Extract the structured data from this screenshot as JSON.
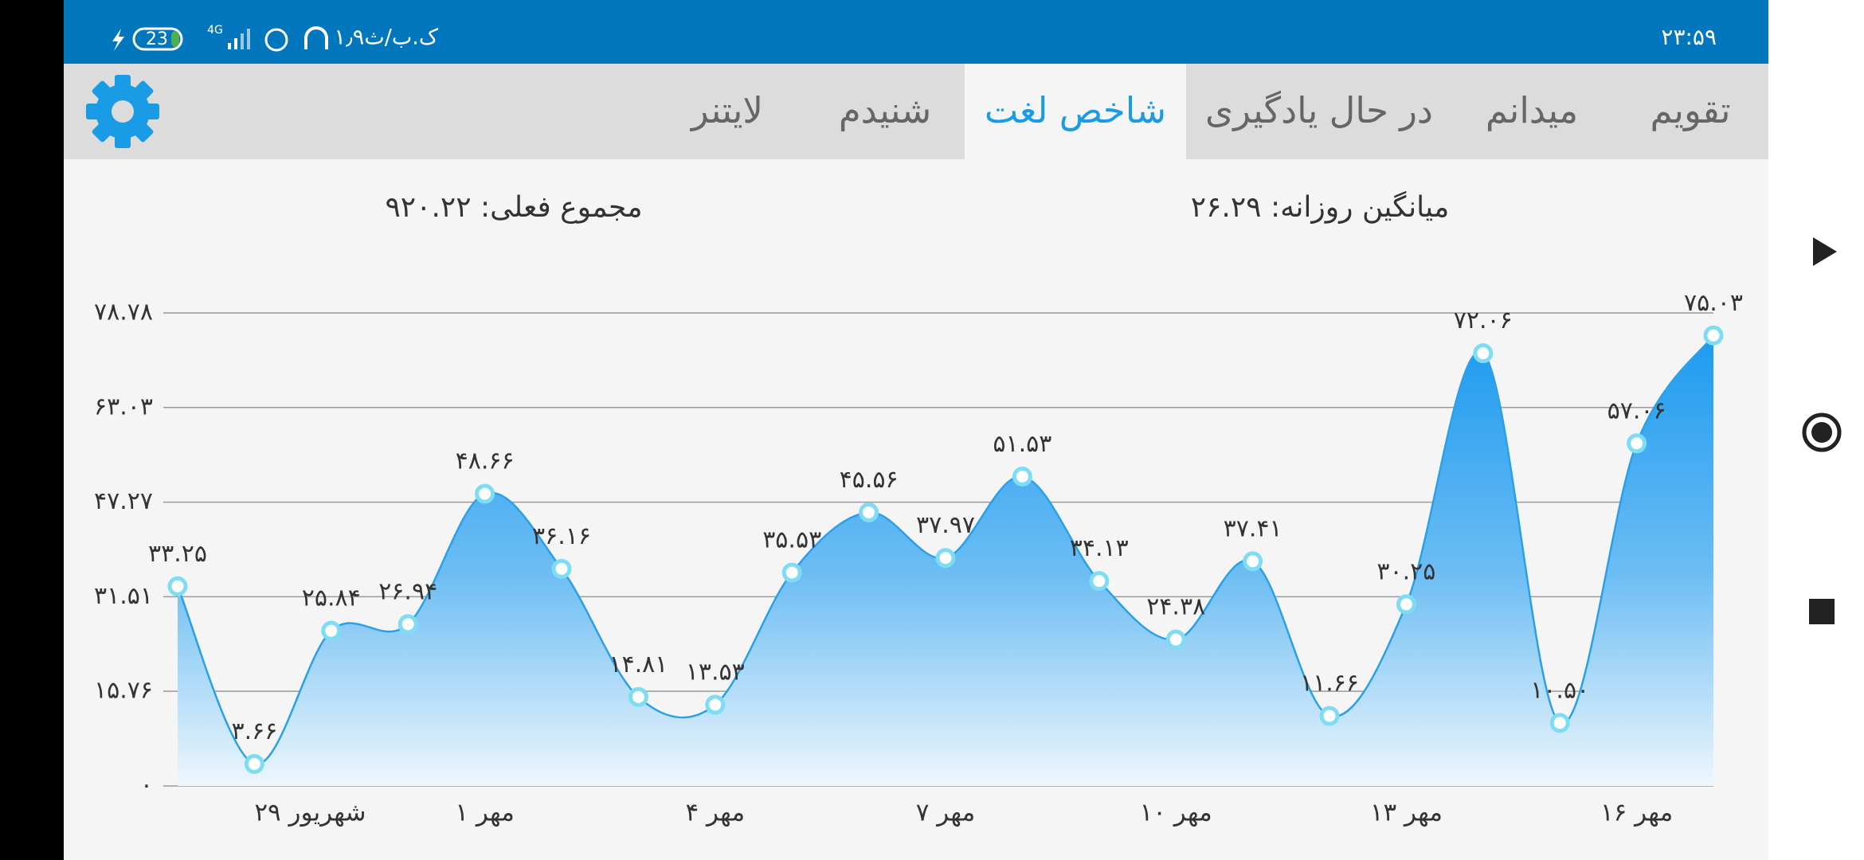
{
  "status_bar": {
    "time": "۲۳:۵۹",
    "network_speed": "۱٫۹ک.ب/ث",
    "battery": "23",
    "network": "4G"
  },
  "tabs": [
    "تقویم",
    "میدانم",
    "در حال یادگیری",
    "شاخص لغت",
    "شنیدم",
    "لایتنر"
  ],
  "active_tab": 3,
  "summary": {
    "daily_average": "میانگین روزانه: ۲۶.۲۹",
    "current_total": "مجموع فعلی: ۹۲۰.۲۲"
  },
  "chart_data": {
    "type": "area",
    "categories": [
      null,
      "۲۹ شهریور",
      null,
      null,
      "۱ مهر",
      null,
      null,
      "۴ مهر",
      null,
      null,
      "۷ مهر",
      null,
      null,
      "۱۰ مهر",
      null,
      null,
      "۱۳ مهر",
      null,
      null,
      "۱۶ مهر",
      null
    ],
    "values": [
      33.25,
      3.66,
      25.84,
      26.94,
      48.66,
      36.16,
      14.81,
      13.53,
      35.53,
      45.56,
      37.97,
      51.53,
      34.13,
      24.38,
      37.41,
      11.66,
      30.25,
      72.06,
      10.5,
      57.06,
      75.03
    ],
    "value_labels": [
      "۳۳.۲۵",
      "۳.۶۶",
      "۲۵.۸۴",
      "۲۶.۹۴",
      "۴۸.۶۶",
      "۳۶.۱۶",
      "۱۴.۸۱",
      "۱۳.۵۳",
      "۳۵.۵۳",
      "۴۵.۵۶",
      "۳۷.۹۷",
      "۵۱.۵۳",
      "۳۴.۱۳",
      "۲۴.۳۸",
      "۳۷.۴۱",
      "۱۱.۶۶",
      "۳۰.۲۵",
      "۷۲.۰۶",
      "۱۰.۵۰",
      "۵۷.۰۶",
      "۷۵.۰۳"
    ],
    "color": "#2aa0e8",
    "ylim": [
      0,
      78.78
    ],
    "yticks": [
      {
        "value": 0,
        "label": "۰"
      },
      {
        "value": 15.76,
        "label": "۱۵.۷۶"
      },
      {
        "value": 31.51,
        "label": "۳۱.۵۱"
      },
      {
        "value": 47.27,
        "label": "۴۷.۲۷"
      },
      {
        "value": 63.03,
        "label": "۶۳.۰۳"
      },
      {
        "value": 78.78,
        "label": "۷۸.۷۸"
      }
    ],
    "grid": true
  }
}
